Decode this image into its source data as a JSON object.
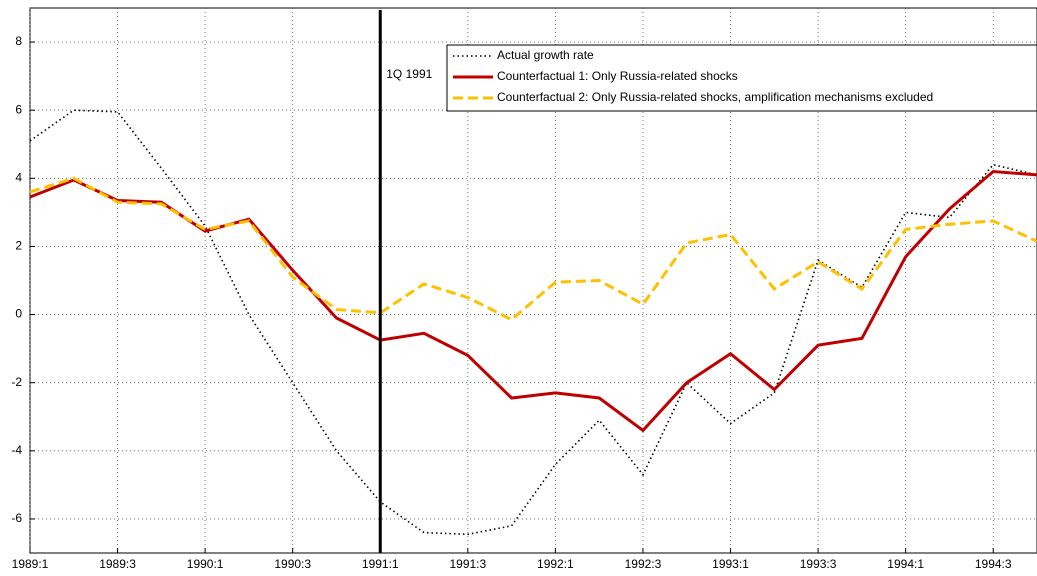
{
  "chart_data": {
    "type": "line",
    "categories": [
      "1989:1",
      null,
      "1989:3",
      null,
      "1990:1",
      null,
      "1990:3",
      null,
      "1991:1",
      null,
      "1991:3",
      null,
      "1992:1",
      null,
      "1992:3",
      null,
      "1993:1",
      null,
      "1993:3",
      null,
      "1994:1",
      null,
      "1994:3",
      null
    ],
    "series": [
      {
        "name": "Actual growth rate",
        "color": "#000000",
        "style": "dotted",
        "values": [
          5.1,
          6.0,
          5.95,
          4.3,
          2.6,
          0.0,
          -2.0,
          -4.0,
          -5.5,
          -6.4,
          -6.45,
          -6.2,
          -4.4,
          -3.1,
          -4.7,
          -2.0,
          -3.2,
          -2.3,
          1.6,
          0.8,
          3.0,
          2.85,
          4.4,
          4.1
        ]
      },
      {
        "name": "Counterfactual 1: Only Russia-related shocks",
        "color": "#c00000",
        "style": "solid",
        "values": [
          3.45,
          3.95,
          3.35,
          3.3,
          2.45,
          2.8,
          1.3,
          -0.1,
          -0.75,
          -0.55,
          -1.2,
          -2.45,
          -2.3,
          -2.45,
          -3.4,
          -2.0,
          -1.15,
          -2.2,
          -0.9,
          -0.7,
          1.7,
          3.1,
          4.2,
          4.1
        ]
      },
      {
        "name": "Counterfactual 2: Only Russia-related shocks, amplification mechanisms excluded",
        "color": "#ffc000",
        "style": "dashed",
        "values": [
          3.6,
          4.0,
          3.3,
          3.25,
          2.5,
          2.75,
          1.1,
          0.15,
          0.05,
          0.9,
          0.5,
          -0.15,
          0.95,
          1.0,
          0.3,
          2.1,
          2.35,
          0.75,
          1.55,
          0.75,
          2.5,
          2.65,
          2.75,
          2.15
        ]
      }
    ],
    "marker_line": {
      "x": "1991:1",
      "label": "1Q 1991",
      "color": "#000000"
    },
    "ylim": [
      -7,
      9
    ],
    "yticks": [
      -6,
      -4,
      -2,
      0,
      2,
      4,
      6,
      8
    ],
    "grid": true,
    "legend": "upper right"
  }
}
